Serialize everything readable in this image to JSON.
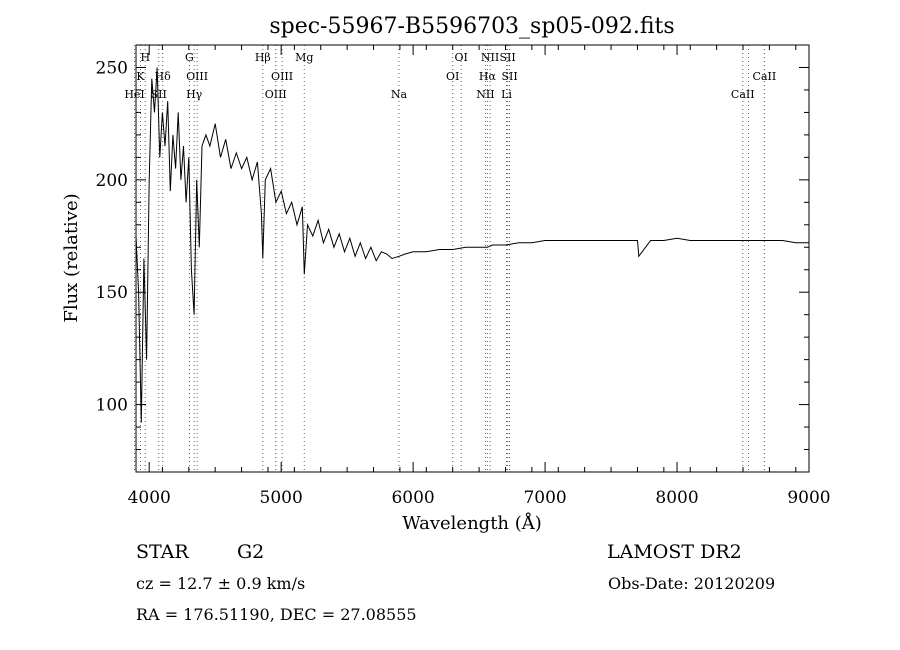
{
  "chart_data": {
    "type": "line",
    "title": "spec-55967-B5596703_sp05-092.fits",
    "xlabel": "Wavelength (Å)",
    "ylabel": "Flux (relative)",
    "xlim": [
      3900,
      9000
    ],
    "ylim": [
      70,
      260
    ],
    "xticks": [
      4000,
      5000,
      6000,
      7000,
      8000,
      9000
    ],
    "yticks": [
      100,
      150,
      200,
      250
    ],
    "grid": false,
    "series": [
      {
        "x": [
          3900,
          3920,
          3940,
          3960,
          3980,
          4000,
          4020,
          4040,
          4060,
          4080,
          4100,
          4120,
          4140,
          4160,
          4180,
          4200,
          4220,
          4240,
          4260,
          4280,
          4300,
          4320,
          4340,
          4360,
          4380,
          4400,
          4430,
          4460,
          4500,
          4540,
          4580,
          4620,
          4660,
          4700,
          4740,
          4780,
          4820,
          4850,
          4861,
          4880,
          4920,
          4960,
          5000,
          5040,
          5080,
          5120,
          5160,
          5175,
          5200,
          5240,
          5280,
          5320,
          5360,
          5400,
          5440,
          5480,
          5520,
          5560,
          5600,
          5640,
          5680,
          5720,
          5760,
          5800,
          5840,
          5893,
          5940,
          6000,
          6100,
          6200,
          6300,
          6400,
          6500,
          6563,
          6600,
          6700,
          6800,
          6900,
          7000,
          7100,
          7200,
          7300,
          7400,
          7500,
          7600,
          7700,
          7710,
          7800,
          7900,
          8000,
          8100,
          8200,
          8300,
          8400,
          8500,
          8600,
          8700,
          8800,
          8900,
          9000
        ],
        "y": [
          175,
          150,
          92,
          165,
          120,
          200,
          245,
          230,
          250,
          210,
          230,
          215,
          235,
          195,
          220,
          205,
          230,
          200,
          215,
          190,
          210,
          160,
          140,
          200,
          170,
          215,
          220,
          215,
          225,
          210,
          218,
          205,
          212,
          205,
          210,
          200,
          208,
          185,
          165,
          200,
          205,
          190,
          195,
          185,
          190,
          180,
          188,
          158,
          180,
          175,
          182,
          172,
          178,
          170,
          176,
          168,
          174,
          166,
          172,
          165,
          170,
          164,
          168,
          167,
          165,
          166,
          167,
          168,
          168,
          169,
          169,
          170,
          170,
          170,
          171,
          171,
          172,
          172,
          173,
          173,
          173,
          173,
          173,
          173,
          173,
          173,
          166,
          173,
          173,
          174,
          173,
          173,
          173,
          173,
          173,
          173,
          173,
          173,
          172,
          172
        ]
      }
    ],
    "lines": [
      {
        "label": "H",
        "x": 3970,
        "row": 0
      },
      {
        "label": "K",
        "x": 3934,
        "row": 1
      },
      {
        "label": "Hδ",
        "x": 4102,
        "row": 1
      },
      {
        "label": "HeI",
        "x": 3889,
        "row": 2
      },
      {
        "label": "SII",
        "x": 4072,
        "row": 2
      },
      {
        "label": "G",
        "x": 4305,
        "row": 0
      },
      {
        "label": "OIII",
        "x": 4363,
        "row": 1
      },
      {
        "label": "Hγ",
        "x": 4341,
        "row": 2
      },
      {
        "label": "Hβ",
        "x": 4861,
        "row": 0
      },
      {
        "label": "Mg",
        "x": 5175,
        "row": 0
      },
      {
        "label": "OIII",
        "x": 5007,
        "row": 1
      },
      {
        "label": "OIII",
        "x": 4959,
        "row": 2
      },
      {
        "label": "Na",
        "x": 5893,
        "row": 2
      },
      {
        "label": "OI",
        "x": 6364,
        "row": 0
      },
      {
        "label": "OI",
        "x": 6300,
        "row": 1
      },
      {
        "label": "NII",
        "x": 6583,
        "row": 0
      },
      {
        "label": "SII",
        "x": 6716,
        "row": 0
      },
      {
        "label": "Hα",
        "x": 6563,
        "row": 1
      },
      {
        "label": "SII",
        "x": 6731,
        "row": 1
      },
      {
        "label": "NII",
        "x": 6548,
        "row": 2
      },
      {
        "label": "Li",
        "x": 6708,
        "row": 2
      },
      {
        "label": "CaII",
        "x": 8662,
        "row": 1
      },
      {
        "label": "CaII",
        "x": 8498,
        "row": 2
      }
    ],
    "dotted_lines_x": [
      3889,
      3934,
      3970,
      4072,
      4102,
      4305,
      4341,
      4363,
      4861,
      4959,
      5007,
      5175,
      5893,
      6300,
      6364,
      6548,
      6563,
      6583,
      6708,
      6716,
      6731,
      8498,
      8542,
      8662
    ]
  },
  "info": {
    "object_class": "STAR",
    "subclass": "G2",
    "survey": "LAMOST DR2",
    "redshift": "cz = 12.7 ± 0.9 km/s",
    "obs_date": "Obs-Date: 20120209",
    "coords": "RA = 176.51190, DEC =  27.08555"
  }
}
